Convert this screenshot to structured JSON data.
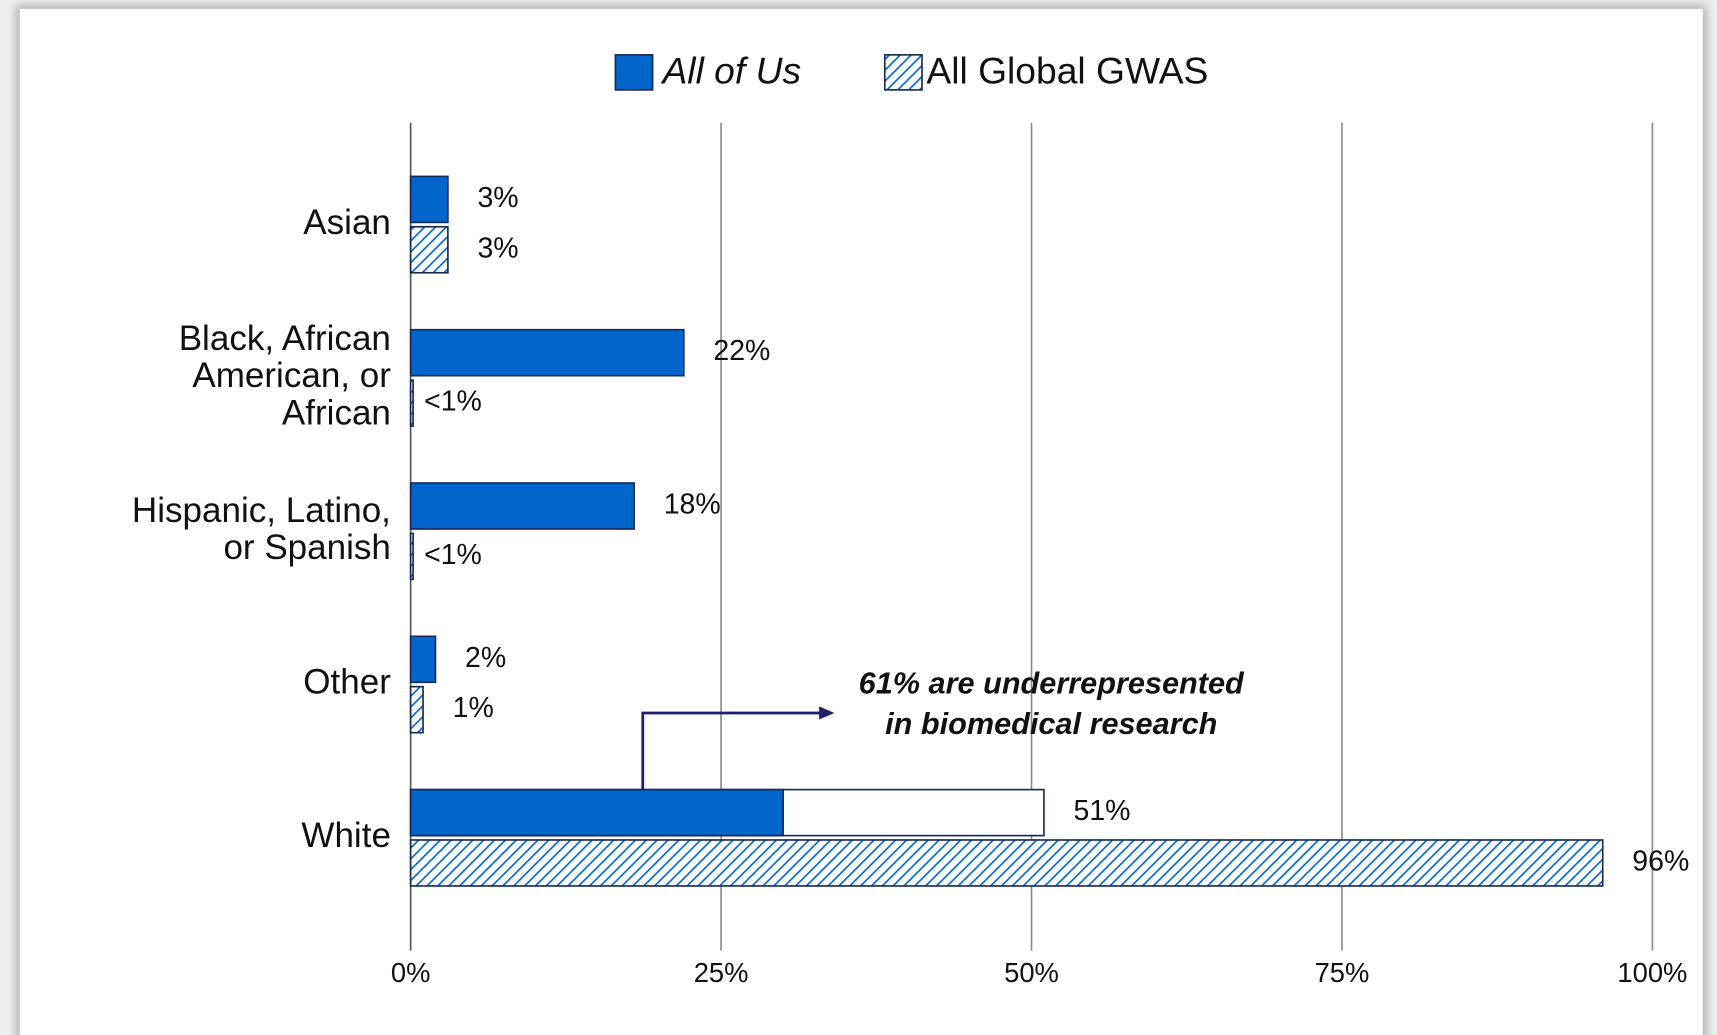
{
  "chart_data": {
    "type": "hbar",
    "categories": [
      "Asian",
      [
        "Black, African",
        "American, or",
        "African"
      ],
      [
        "Hispanic, Latino,",
        "or Spanish"
      ],
      "Other",
      "White"
    ],
    "series": [
      {
        "name": "All of Us",
        "color": "#0066cc",
        "pattern": "solid",
        "font_style": "italic",
        "values": [
          3,
          22,
          18,
          2,
          51
        ],
        "value_labels": [
          "3%",
          "22%",
          "18%",
          "2%",
          "51%"
        ],
        "underrepresented_values": [
          null,
          null,
          null,
          null,
          30
        ]
      },
      {
        "name": "All Global GWAS",
        "color": "#0066cc",
        "pattern": "hatch",
        "font_style": "normal",
        "values": [
          3,
          0.2,
          0.2,
          1,
          96
        ],
        "value_labels": [
          "3%",
          "<1%",
          "<1%",
          "1%",
          "96%"
        ]
      }
    ],
    "xlim": [
      0,
      100
    ],
    "xticks": [
      {
        "value": 0,
        "label": "0%"
      },
      {
        "value": 25,
        "label": "25%"
      },
      {
        "value": 50,
        "label": "50%"
      },
      {
        "value": 75,
        "label": "75%"
      },
      {
        "value": 100,
        "label": "100%"
      }
    ],
    "grid": true,
    "legend": "top",
    "annotations": [
      {
        "lines": [
          "61% are underrepresented",
          "in biomedical research"
        ]
      }
    ]
  }
}
